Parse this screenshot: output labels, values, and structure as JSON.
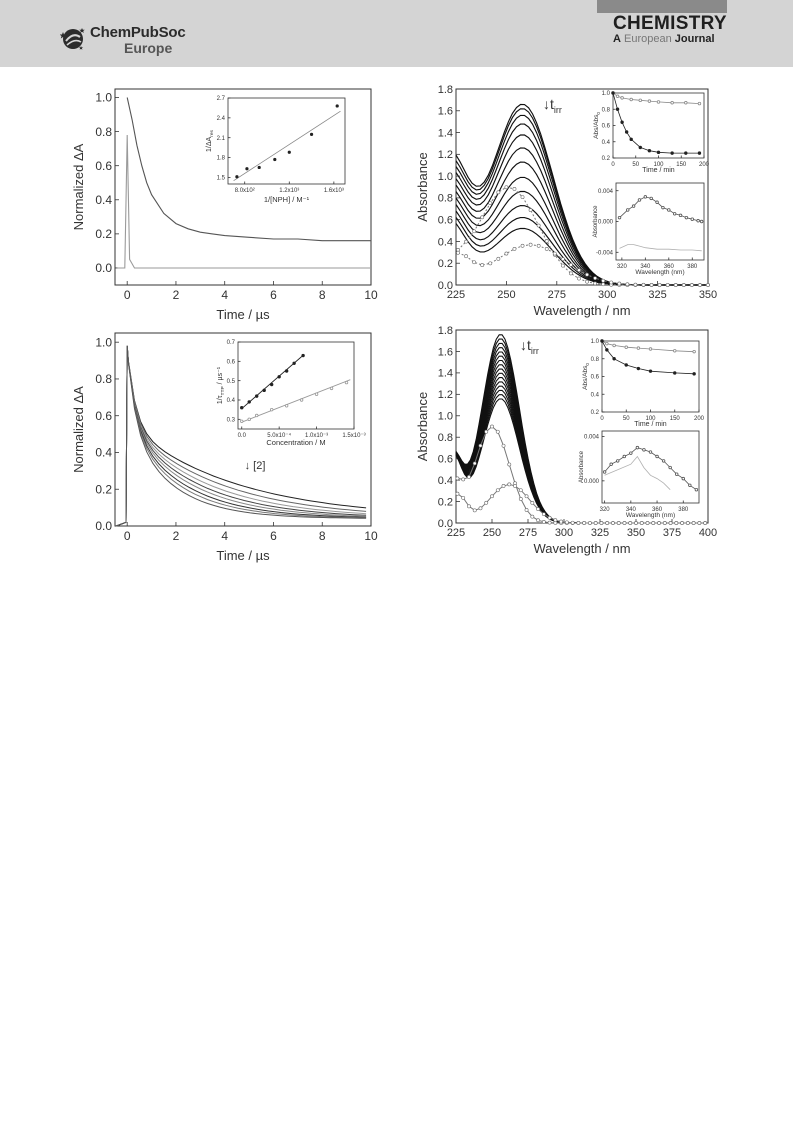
{
  "header": {
    "logo_name": "ChemPubSoc",
    "logo_sub": "Europe",
    "journal_name": "CHEMISTRY",
    "journal_sub_a": "A",
    "journal_sub_b": "European",
    "journal_sub_c": "Journal",
    "colors": {
      "band": "#d4d4d4",
      "tab": "#8a8a8a",
      "text": "#1f1f1f"
    }
  },
  "icons": {
    "logo": "chempubsoc-star-globe-icon"
  },
  "chart_data": [
    {
      "id": "a",
      "type": "line",
      "xlabel": "Time / µs",
      "ylabel": "Normalized ΔA",
      "xlim": [
        -0.5,
        10
      ],
      "ylim": [
        -0.1,
        1.05
      ],
      "xticks": [
        0,
        2,
        4,
        6,
        8,
        10
      ],
      "yticks": [
        0.0,
        0.2,
        0.4,
        0.6,
        0.8,
        1.0
      ],
      "series": [
        {
          "color": "#555555",
          "x": [
            0,
            0.2,
            0.4,
            0.6,
            0.8,
            1,
            1.5,
            2,
            2.5,
            3,
            3.5,
            4,
            5,
            6,
            7,
            8,
            9,
            10
          ],
          "y": [
            1.0,
            0.87,
            0.72,
            0.6,
            0.5,
            0.43,
            0.32,
            0.26,
            0.23,
            0.21,
            0.2,
            0.19,
            0.18,
            0.17,
            0.17,
            0.16,
            0.16,
            0.16
          ]
        },
        {
          "color": "#9a9a9a",
          "x": [
            -0.4,
            -0.1,
            0,
            0.1,
            0.3,
            1,
            2,
            3,
            4,
            5,
            6,
            7,
            8,
            9,
            10
          ],
          "y": [
            0.0,
            0.0,
            0.78,
            0.05,
            0.0,
            0.0,
            0.0,
            0.0,
            0.0,
            0.0,
            0.0,
            0.0,
            0.0,
            0.0,
            0.0
          ]
        }
      ],
      "inset": {
        "type": "scatter",
        "xlabel": "1/[NPH] / M⁻¹",
        "ylabel": "1/ΔA",
        "ylabel_sub": "res",
        "xlim": [
          650,
          1700
        ],
        "ylim": [
          1.4,
          2.7
        ],
        "xtick_values": [
          800,
          1200,
          1600
        ],
        "xtick_labels": [
          "8.0x10²",
          "1.2x10³",
          "1.6x10³"
        ],
        "yticks": [
          1.5,
          1.8,
          2.1,
          2.4,
          2.7
        ],
        "points": {
          "x": [
            730,
            820,
            930,
            1070,
            1200,
            1400,
            1630
          ],
          "y": [
            1.51,
            1.63,
            1.65,
            1.77,
            1.88,
            2.15,
            2.58
          ]
        },
        "fit": {
          "x": [
            700,
            1660
          ],
          "y": [
            1.45,
            2.5
          ]
        }
      }
    },
    {
      "id": "b",
      "type": "line",
      "xlabel": "Wavelength / nm",
      "ylabel": "Absorbance",
      "xlim": [
        225,
        350
      ],
      "ylim": [
        0,
        1.8
      ],
      "xticks": [
        225,
        250,
        275,
        300,
        325,
        350
      ],
      "yticks": [
        0.0,
        0.2,
        0.4,
        0.6,
        0.8,
        1.0,
        1.2,
        1.4,
        1.6,
        1.8
      ],
      "annotation": "↓t",
      "annotation_sub": "irr",
      "spectra_peaks": [
        1.66,
        1.62,
        1.56,
        1.48,
        1.38,
        1.26,
        1.13,
        0.99,
        0.86,
        0.73,
        0.62,
        0.52
      ],
      "reference": {
        "label_a_peak": 0.9,
        "label_b_peak": 0.37
      },
      "inset_top": {
        "type": "scatter",
        "xlabel": "Time / min",
        "ylabel": "Abs/Abs",
        "ylabel_sub": "0",
        "xlim": [
          0,
          200
        ],
        "ylim": [
          0.2,
          1.0
        ],
        "xticks": [
          0,
          50,
          100,
          150,
          200
        ],
        "yticks": [
          0.2,
          0.4,
          0.6,
          0.8,
          1.0
        ],
        "series": [
          {
            "color": "#8a8a8a",
            "x": [
              0,
              10,
              20,
              40,
              60,
              80,
              100,
              130,
              160,
              190
            ],
            "y": [
              1.0,
              0.96,
              0.94,
              0.92,
              0.91,
              0.9,
              0.89,
              0.88,
              0.88,
              0.87
            ]
          },
          {
            "color": "#222222",
            "x": [
              0,
              10,
              20,
              30,
              40,
              60,
              80,
              100,
              130,
              160,
              190
            ],
            "y": [
              1.0,
              0.8,
              0.64,
              0.52,
              0.43,
              0.33,
              0.29,
              0.27,
              0.26,
              0.26,
              0.26
            ]
          }
        ]
      },
      "inset_bottom": {
        "type": "scatter",
        "xlabel": "Wavelength (nm)",
        "ylabel": "Absorbance",
        "xlim": [
          315,
          390
        ],
        "ylim": [
          -0.005,
          0.005
        ],
        "xticks": [
          320,
          340,
          360,
          380
        ],
        "yticks": [
          -0.004,
          0.0,
          0.004
        ],
        "ytick_labels": [
          "-0.004",
          "0.000",
          "0.004"
        ],
        "series": [
          {
            "color": "#555555",
            "x": [
              318,
              325,
              330,
              335,
              340,
              345,
              350,
              355,
              360,
              365,
              370,
              375,
              380,
              385,
              388
            ],
            "y": [
              0.0005,
              0.0015,
              0.002,
              0.0028,
              0.0032,
              0.003,
              0.0025,
              0.0018,
              0.0015,
              0.001,
              0.0008,
              0.0005,
              0.0003,
              0.0001,
              0.0
            ]
          },
          {
            "color": "#b0b0b0",
            "x": [
              318,
              325,
              330,
              335,
              340,
              350,
              360,
              370,
              380,
              388
            ],
            "y": [
              -0.0035,
              -0.003,
              -0.003,
              -0.0032,
              -0.0034,
              -0.0036,
              -0.0036,
              -0.0037,
              -0.0037,
              -0.0038
            ]
          }
        ]
      }
    },
    {
      "id": "c",
      "type": "line",
      "xlabel": "Time / µs",
      "ylabel": "Normalized ΔA",
      "xlim": [
        -0.5,
        10
      ],
      "ylim": [
        0,
        1.05
      ],
      "xticks": [
        0,
        2,
        4,
        6,
        8,
        10
      ],
      "yticks": [
        0.0,
        0.2,
        0.4,
        0.6,
        0.8,
        1.0
      ],
      "annotation": "↓ [2]",
      "decay_rates": [
        0.22,
        0.26,
        0.3,
        0.34,
        0.38,
        0.43,
        0.48,
        0.55
      ],
      "inset": {
        "type": "scatter",
        "xlabel": "Concentration / M",
        "ylabel": "1/τ",
        "ylabel_sub": "TTP",
        "ylabel_unit": " / µs⁻¹",
        "xlim": [
          -5e-05,
          0.0015
        ],
        "ylim": [
          0.25,
          0.7
        ],
        "xtick_values": [
          0,
          0.0005,
          0.001,
          0.0015
        ],
        "xtick_labels": [
          "0.0",
          "5.0x10⁻⁴",
          "1.0x10⁻³",
          "1.5x10⁻³"
        ],
        "yticks": [
          0.3,
          0.4,
          0.5,
          0.6,
          0.7
        ],
        "series": [
          {
            "color": "#222222",
            "x": [
              0,
              0.0001,
              0.0002,
              0.0003,
              0.0004,
              0.0005,
              0.0006,
              0.0007,
              0.00082
            ],
            "y": [
              0.36,
              0.39,
              0.42,
              0.45,
              0.48,
              0.52,
              0.55,
              0.59,
              0.63
            ],
            "fit": {
              "x": [
                0,
                0.00083
              ],
              "y": [
                0.355,
                0.635
              ]
            }
          },
          {
            "color": "#999999",
            "x": [
              0,
              0.0001,
              0.0002,
              0.0004,
              0.0006,
              0.0008,
              0.001,
              0.0012,
              0.0014
            ],
            "y": [
              0.29,
              0.3,
              0.32,
              0.35,
              0.37,
              0.4,
              0.43,
              0.46,
              0.49
            ],
            "fit": {
              "x": [
                0,
                0.00145
              ],
              "y": [
                0.285,
                0.505
              ]
            }
          }
        ]
      }
    },
    {
      "id": "d",
      "type": "line",
      "xlabel": "Wavelength / nm",
      "ylabel": "Absorbance",
      "xlim": [
        225,
        400
      ],
      "ylim": [
        0,
        1.8
      ],
      "xticks": [
        225,
        250,
        275,
        300,
        325,
        350,
        375,
        400
      ],
      "yticks": [
        0.0,
        0.2,
        0.4,
        0.6,
        0.8,
        1.0,
        1.2,
        1.4,
        1.6,
        1.8
      ],
      "annotation": "↓t",
      "annotation_sub": "irr",
      "spectra_peaks": [
        1.76,
        1.72,
        1.68,
        1.64,
        1.6,
        1.56,
        1.52,
        1.48,
        1.44,
        1.4,
        1.36,
        1.32,
        1.28,
        1.24,
        1.2,
        1.16
      ],
      "reference": {
        "label_a_peak": 0.9,
        "label_b_peak": 0.36
      },
      "inset_top": {
        "type": "scatter",
        "xlabel": "Time / min",
        "ylabel": "Abs/Abs",
        "ylabel_sub": "0",
        "xlim": [
          0,
          200
        ],
        "ylim": [
          0.2,
          1.0
        ],
        "xticks": [
          0,
          50,
          100,
          150,
          200
        ],
        "yticks": [
          0.2,
          0.4,
          0.6,
          0.8,
          1.0
        ],
        "series": [
          {
            "color": "#8a8a8a",
            "x": [
              0,
              10,
              25,
              50,
              75,
              100,
              150,
              190
            ],
            "y": [
              1.0,
              0.97,
              0.95,
              0.93,
              0.92,
              0.91,
              0.89,
              0.88
            ]
          },
          {
            "color": "#222222",
            "x": [
              0,
              10,
              25,
              50,
              75,
              100,
              150,
              190
            ],
            "y": [
              1.0,
              0.9,
              0.8,
              0.73,
              0.69,
              0.66,
              0.64,
              0.63
            ]
          }
        ]
      },
      "inset_bottom": {
        "type": "scatter",
        "xlabel": "Wavelength (nm)",
        "ylabel": "Absorbance",
        "xlim": [
          318,
          392
        ],
        "ylim": [
          -0.002,
          0.0045
        ],
        "xticks": [
          320,
          340,
          360,
          380
        ],
        "yticks": [
          0.0,
          0.004
        ],
        "ytick_labels": [
          "0.000",
          "0.004"
        ],
        "series": [
          {
            "color": "#555555",
            "x": [
              320,
              325,
              330,
              335,
              340,
              345,
              350,
              355,
              360,
              365,
              370,
              375,
              380,
              385,
              390
            ],
            "y": [
              0.0008,
              0.0015,
              0.0018,
              0.0022,
              0.0025,
              0.003,
              0.0028,
              0.0026,
              0.0022,
              0.0018,
              0.0012,
              0.0006,
              0.0002,
              -0.0004,
              -0.0008
            ]
          },
          {
            "color": "#b0b0b0",
            "x": [
              320,
              330,
              340,
              345,
              350,
              355,
              360,
              365,
              370
            ],
            "y": [
              0.0005,
              0.001,
              0.0015,
              0.0022,
              0.0012,
              0.0005,
              0.0002,
              -0.0002,
              -0.0008
            ]
          }
        ]
      }
    }
  ]
}
